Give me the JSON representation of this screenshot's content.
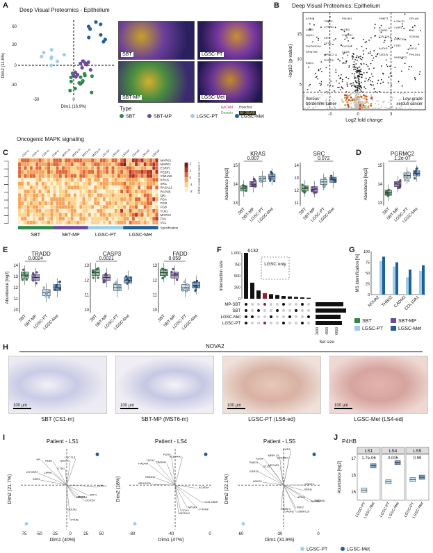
{
  "panels": {
    "A": "A",
    "B": "B",
    "C": "C",
    "D": "D",
    "E": "E",
    "F": "F",
    "G": "G",
    "H": "H",
    "I": "I",
    "J": "J"
  },
  "a": {
    "title": "Deep Visual Proteomics - Epithelium",
    "xlabel": "Dim1 (16.9%)",
    "ylabel": "Dim2 (11.6%)",
    "xticks": [
      "-50",
      "0"
    ],
    "yticks": [
      "60",
      "30",
      "0",
      "-30"
    ],
    "micros": [
      "SBT",
      "LGSC-PT",
      "SBT-MP",
      "LGSC-Met"
    ],
    "type_title": "Type",
    "types": [
      "SBT",
      "SBT-MP",
      "LGSC-PT",
      "LGSC-Met"
    ],
    "stains": [
      "EpCAM",
      "Hoechst",
      "Desmin",
      "AF-28/AB"
    ]
  },
  "colors": {
    "sbt": "#2e8b4a",
    "sbtmp": "#6a4ba0",
    "lgscpt": "#9fcfe6",
    "lgscmet": "#1f5f9a"
  },
  "b": {
    "title": "Deep Visual Proteomics: Epithelium",
    "xlabel": "Log2 fold change",
    "ylabel": "-log10 (p-value)",
    "xticks": [
      "-3",
      "0",
      "3"
    ],
    "yticks": [
      "15",
      "10",
      "5"
    ],
    "left_note": "Serous\nborderline tumor",
    "right_note": "Low-grade\nserous cancer",
    "left_genes": [
      "AGR2",
      "TFPP2",
      "PDLIM1",
      "CAPB",
      "CYBRD",
      "AGR3",
      "NQO1",
      "CFH",
      "CYP2S1",
      "ZWZVND16",
      "CFTR",
      "FUCA1",
      "SPINT1B",
      "WFDC2",
      "CCLB",
      "EMC1",
      "GCNP8",
      "LYZ"
    ],
    "right_genes": [
      "SHMT1",
      "LGALS1",
      "DPLAN",
      "LZAN2",
      "CAPG",
      "FN1",
      "COL12A1",
      "LRRC15",
      "S100A4",
      "ALDH1",
      "LTB3",
      "MYLK",
      "TAGLN",
      "HNRNPCL",
      "PHLDA1"
    ]
  },
  "c": {
    "title": "Oncogenic MAPK signaling",
    "columns": [
      "CS1-m",
      "CS2-m",
      "CS3-m",
      "CS6-m",
      "MST1-m",
      "MST2-m",
      "MST3-m",
      "MST6-m",
      "LS1-ed",
      "LS2-ed",
      "LS3-ed",
      "LS4-ed",
      "LS5-ed",
      "LS6-ed"
    ],
    "rows": [
      "MAPK3",
      "MAPK1",
      "ESRP1",
      "PEBP1",
      "YWHAB",
      "KRAS",
      "SRC",
      "RASAL1",
      "RAP1B",
      "QKI",
      "FGA",
      "FGG",
      "FGB",
      "TLN1",
      "MAPK2",
      "FN1",
      "VCL"
    ],
    "legend_title": "z-score abundance [log2]",
    "legend_ticks": [
      "2",
      "1",
      "0",
      "-1",
      "-2"
    ],
    "spec": "Specification",
    "groups": [
      "SBT",
      "SBT-MP",
      "LGSC-PT",
      "LGSC-Met"
    ]
  },
  "box_cats": [
    "SBT",
    "SBT-MP",
    "LGSC-PT",
    "LGSC-Met"
  ],
  "kras": {
    "title": "KRAS",
    "p": "0.007",
    "ylabel": "Abundance [log2]",
    "yticks": [
      "15",
      "14",
      "13"
    ]
  },
  "src": {
    "title": "SRC",
    "p": "0.072",
    "yticks": [
      "14",
      "13",
      "12",
      "11"
    ]
  },
  "d": {
    "title": "PGRMC2",
    "p": "1.2e-07",
    "ylabel": "Abundance [log2]",
    "yticks": [
      "15",
      "14",
      "13"
    ]
  },
  "e": {
    "ylabel": "Abundance [log2]",
    "tradd": {
      "title": "TRADD",
      "p": "0.0024",
      "yticks": [
        "14",
        "13",
        "12",
        "11",
        "10"
      ]
    },
    "casp3": {
      "title": "CASP3",
      "p": "0.0021",
      "yticks": [
        "13",
        "12",
        "11",
        "10"
      ]
    },
    "fadd": {
      "title": "FADD",
      "p": "0.059",
      "yticks": [
        "13",
        "12",
        "11",
        "10"
      ]
    }
  },
  "f": {
    "ylabel": "Intersection size",
    "top": "6132",
    "yticks": [
      "1,000",
      "750",
      "500",
      "250",
      "0"
    ],
    "note": "LGSC only",
    "sets": [
      "MP-SBT",
      "SBT",
      "LGSC-Met",
      "LGSC-PT"
    ],
    "xlabel": "Set size",
    "xticks": [
      "2000",
      "4000",
      "6000"
    ]
  },
  "g": {
    "ylabel": "MS Identification [%]",
    "yticks": [
      "100",
      "75",
      "50",
      "25",
      "0"
    ],
    "genes": [
      "NOVA2",
      "THBS2",
      "CADM2",
      "COL10A1"
    ],
    "legend": [
      "SBT",
      "SBT-MP",
      "LGSC-PT",
      "LGSC-Met"
    ]
  },
  "h": {
    "title": "NOVA2",
    "scale": "100 µm",
    "captions": [
      "SBT (CS1-m)",
      "SBT-MP (MST6-m)",
      "LGSC-PT (LS6-ed)",
      "LGSC-Met (LS4-ed)"
    ]
  },
  "i": {
    "ls1": {
      "title": "Patient - LS1",
      "xlabel": "Dim1 (40%)",
      "ylabel": "Dim2 (21.7%)",
      "xticks": [
        "-75",
        "-50",
        "-25",
        "0",
        "25",
        "50"
      ],
      "genes": [
        "LUCTL3",
        "QSOX1",
        "CTSD",
        "A1BG",
        "HP",
        "LMNA",
        "IGF2BP2",
        "SSR3",
        "HPRT1",
        "ARF4",
        "DDX3X",
        "MTG1",
        "NDUFA4",
        "P4HB",
        "GOLM2"
      ]
    },
    "ls4": {
      "title": "Patient - LS4",
      "xlabel": "Dim1 (47%)",
      "ylabel": "Dim2 (18%)",
      "xticks": [
        "-80",
        "-40",
        "0"
      ],
      "genes": [
        "ALDH4A1",
        "PDXK",
        "YWHAH",
        "ISCA1",
        "HADHA",
        "RMDN1",
        "ARHGDIA",
        "ACADM",
        "LGALS3BP",
        "PTPRF",
        "NPS4X",
        "CDX4",
        "AFG3L2"
      ]
    },
    "ls5": {
      "title": "Patient - LS5",
      "xlabel": "Dim1 (31.8%)",
      "ylabel": "Dim2 (22.1%)",
      "xticks": [
        "-60",
        "-30",
        "0"
      ],
      "genes": [
        "EHD2",
        "SCAMP4",
        "MRPL23",
        "NECAP1",
        "KDSR",
        "STX5",
        "RAB7A",
        "ERP29",
        "ANKS1",
        "CNOT1",
        "SPEN",
        "TMEM41",
        "HMGB2",
        "HIGX1",
        "PKP2",
        "OSBPL10",
        "JAGN1",
        "RUSF1"
      ]
    },
    "legend": [
      "LGSC-PT",
      "LGSC-Met"
    ]
  },
  "j": {
    "title": "P4HB",
    "facets": [
      "LS1",
      "LS4",
      "LS5"
    ],
    "p": [
      "1.7e-06",
      "0.005",
      "0.99"
    ],
    "ylabel": "Abundance [log2]",
    "yticks": [
      "17",
      "16",
      "15"
    ],
    "cats": [
      "LGSC-PT",
      "LGSC-Met"
    ]
  }
}
